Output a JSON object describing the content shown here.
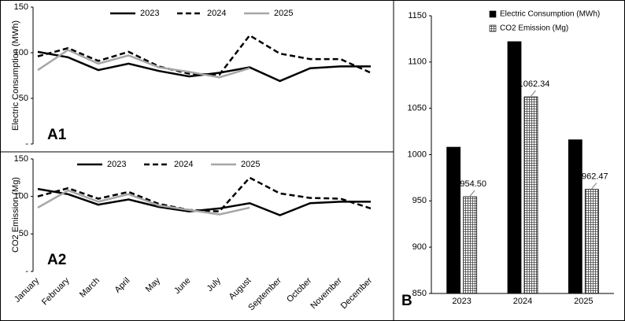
{
  "chart_data": [
    {
      "type": "line",
      "label": "A1",
      "y_label": "Electric Consumption (MWh)",
      "categories": [
        null,
        null,
        null,
        null,
        null,
        null,
        null,
        null,
        null,
        null,
        null,
        null
      ],
      "ylim": [
        0,
        150
      ],
      "yticks": [
        {
          "value": 0,
          "label": "-"
        },
        50,
        100,
        150
      ],
      "series": [
        {
          "name": "2023",
          "color": "#000000",
          "dashed": false,
          "values": [
            101,
            95,
            81,
            88,
            80,
            74,
            78,
            84,
            69,
            83,
            85,
            85
          ]
        },
        {
          "name": "2024",
          "color": "#000000",
          "dashed": true,
          "values": [
            96,
            105,
            91,
            101,
            85,
            77,
            76,
            119,
            99,
            93,
            93,
            78
          ]
        },
        {
          "name": "2025",
          "color": "#a6a6a6",
          "dashed": false,
          "values": [
            81,
            103,
            88,
            97,
            84,
            79,
            73,
            83,
            null,
            null,
            null,
            null
          ]
        }
      ]
    },
    {
      "type": "line",
      "label": "A2",
      "y_label": "CO2 Emission (Mg)",
      "categories": [
        "January",
        "February",
        "March",
        "April",
        "May",
        "June",
        "July",
        "August",
        "September",
        "October",
        "November",
        "December"
      ],
      "ylim": [
        0,
        150
      ],
      "yticks": [
        {
          "value": 0,
          "label": "-"
        },
        50,
        100,
        150
      ],
      "series": [
        {
          "name": "2023",
          "color": "#000000",
          "dashed": false,
          "values": [
            110,
            103,
            89,
            96,
            86,
            80,
            84,
            91,
            75,
            91,
            93,
            93
          ]
        },
        {
          "name": "2024",
          "color": "#000000",
          "dashed": true,
          "values": [
            100,
            111,
            97,
            106,
            90,
            82,
            80,
            125,
            104,
            98,
            97,
            84
          ]
        },
        {
          "name": "2025",
          "color": "#a6a6a6",
          "dashed": false,
          "values": [
            85,
            108,
            93,
            103,
            88,
            82,
            76,
            85,
            null,
            null,
            null,
            null
          ]
        }
      ]
    },
    {
      "type": "bar",
      "label": "B",
      "categories": [
        "2023",
        "2024",
        "2025"
      ],
      "ylim": [
        850,
        1150
      ],
      "yticks": [
        850,
        900,
        950,
        1000,
        1050,
        1100,
        1150
      ],
      "series": [
        {
          "name": "Electric Consumption (MWh)",
          "color": "#000000",
          "values": [
            1008,
            1122,
            1016
          ]
        },
        {
          "name": "CO2 Emission (Mg)",
          "color": "hatch",
          "values": [
            954.5,
            1062.34,
            962.47
          ],
          "value_labels": [
            "954.50",
            "1062.34",
            "962.47"
          ]
        }
      ]
    }
  ]
}
